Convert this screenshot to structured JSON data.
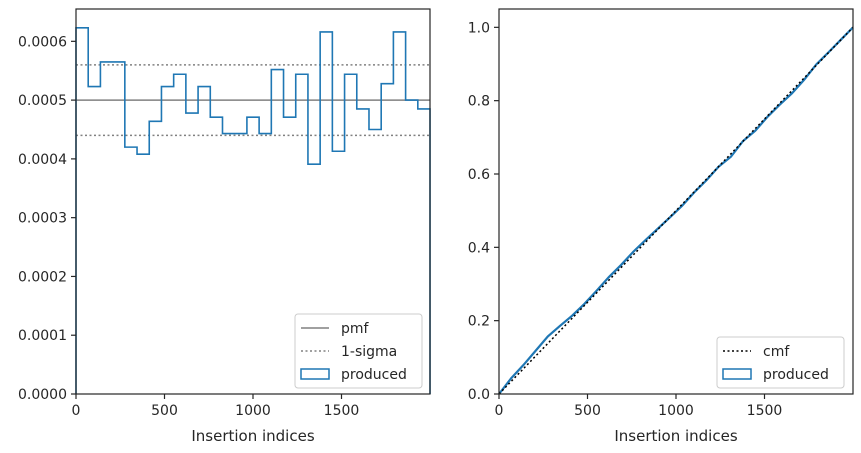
{
  "chart_data": [
    {
      "type": "histogram-step",
      "xlabel": "Insertion indices",
      "ylabel": "",
      "xlim": [
        0,
        2000
      ],
      "ylim": [
        0,
        0.000655
      ],
      "xticks": [
        0,
        500,
        1000,
        1500
      ],
      "xtick_labels": [
        "0",
        "500",
        "1000",
        "1500"
      ],
      "yticks": [
        0,
        0.0001,
        0.0002,
        0.0003,
        0.0004,
        0.0005,
        0.0006
      ],
      "ytick_labels": [
        "0.0000",
        "0.0001",
        "0.0002",
        "0.0003",
        "0.0004",
        "0.0005",
        "0.0006"
      ],
      "pmf": 0.0005,
      "sigma_band": [
        0.00044,
        0.00056
      ],
      "bin_width": 68.97,
      "produced": [
        0.000623,
        0.000523,
        0.000565,
        0.000565,
        0.00042,
        0.000408,
        0.000464,
        0.000523,
        0.000544,
        0.000478,
        0.000523,
        0.000471,
        0.000443,
        0.000443,
        0.000471,
        0.000443,
        0.000552,
        0.000471,
        0.000544,
        0.000391,
        0.000616,
        0.000413,
        0.000544,
        0.000485,
        0.00045,
        0.000528,
        0.000616,
        0.0005,
        0.000485
      ],
      "legend": [
        "pmf",
        "1-sigma",
        "produced"
      ],
      "legend_loc": "lower right",
      "grid": false
    },
    {
      "type": "line",
      "xlabel": "Insertion indices",
      "ylabel": "",
      "xlim": [
        0,
        2000
      ],
      "ylim": [
        0,
        1.05
      ],
      "xticks": [
        0,
        500,
        1000,
        1500
      ],
      "xtick_labels": [
        "0",
        "500",
        "1000",
        "1500"
      ],
      "yticks": [
        0,
        0.2,
        0.4,
        0.6,
        0.8,
        1.0
      ],
      "ytick_labels": [
        "0.0",
        "0.2",
        "0.4",
        "0.6",
        "0.8",
        "1.0"
      ],
      "cmf": {
        "x": [
          0,
          2000
        ],
        "y": [
          0,
          1
        ]
      },
      "produced": {
        "x": [
          0,
          69,
          138,
          207,
          276,
          345,
          414,
          483,
          552,
          621,
          690,
          759,
          828,
          897,
          966,
          1034,
          1103,
          1172,
          1241,
          1310,
          1379,
          1448,
          1517,
          1586,
          1655,
          1724,
          1793,
          1862,
          1931,
          2000
        ],
        "y": [
          0,
          0.043,
          0.079,
          0.118,
          0.157,
          0.186,
          0.214,
          0.246,
          0.282,
          0.319,
          0.352,
          0.388,
          0.42,
          0.451,
          0.482,
          0.513,
          0.55,
          0.583,
          0.62,
          0.647,
          0.69,
          0.718,
          0.756,
          0.789,
          0.82,
          0.857,
          0.899,
          0.932,
          0.966,
          1.0
        ]
      },
      "legend": [
        "cmf",
        "produced"
      ],
      "legend_loc": "lower right",
      "grid": false
    }
  ]
}
